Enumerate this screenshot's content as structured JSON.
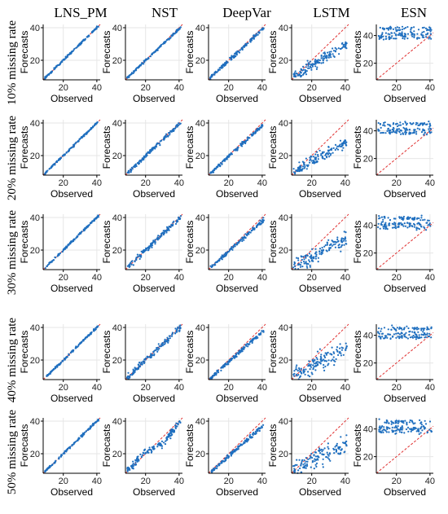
{
  "figure": {
    "columns": [
      "LNS_PM",
      "NST",
      "DeepVar",
      "LSTM",
      "ESN"
    ],
    "rows": [
      "10% missing rate",
      "20% missing rate",
      "30% missing rate",
      "40% missing rate",
      "50% missing rate"
    ]
  },
  "colors": {
    "points": "#1f6fbf",
    "reference_line": "#e03131",
    "grid": "#e6e6e6",
    "axis": "#000000"
  },
  "chart_data": {
    "type": "scatter",
    "layout": "5x5 grid of subplots (rows: missing rate, columns: model)",
    "xlabel": "Observed",
    "ylabel": "Forecasts",
    "grid": true,
    "reference_line": "y = x (red dashed, visible in LSTM and ESN panels)",
    "panels": {
      "LNS_PM": {
        "xlim": [
          8,
          42
        ],
        "ylim": [
          8,
          42
        ],
        "xticks": [
          20,
          40
        ],
        "yticks": [
          20,
          40
        ],
        "description": "points lie tightly along y = x for all missing rates",
        "samples": [
          [
            10,
            10
          ],
          [
            15,
            15
          ],
          [
            20,
            20
          ],
          [
            25,
            25
          ],
          [
            30,
            30
          ],
          [
            35,
            35
          ],
          [
            40,
            40
          ]
        ]
      },
      "NST": {
        "xlim": [
          8,
          42
        ],
        "ylim": [
          8,
          42
        ],
        "xticks": [
          20,
          40
        ],
        "yticks": [
          20,
          40
        ],
        "description": "close to y = x at 10-40% missing rate; wider S-shaped spread at 50%",
        "samples": [
          [
            10,
            10
          ],
          [
            15,
            14
          ],
          [
            20,
            19
          ],
          [
            25,
            24
          ],
          [
            30,
            29
          ],
          [
            35,
            34
          ],
          [
            40,
            40
          ]
        ]
      },
      "DeepVar": {
        "xlim": [
          8,
          42
        ],
        "ylim": [
          8,
          42
        ],
        "xticks": [
          20,
          40
        ],
        "yticks": [
          20,
          40
        ],
        "description": "close to y = x, slight under-forecast at high values",
        "samples": [
          [
            10,
            10
          ],
          [
            15,
            15
          ],
          [
            20,
            20
          ],
          [
            25,
            24
          ],
          [
            30,
            29
          ],
          [
            35,
            33
          ],
          [
            40,
            38
          ]
        ]
      },
      "LSTM": {
        "xlim": [
          8,
          42
        ],
        "ylim": [
          8,
          42
        ],
        "xticks": [
          20,
          40
        ],
        "yticks": [
          20,
          40
        ],
        "description": "wide dispersed cloud, under-forecasting at high observed values",
        "samples": [
          [
            10,
            12
          ],
          [
            15,
            15
          ],
          [
            20,
            19
          ],
          [
            25,
            22
          ],
          [
            30,
            25
          ],
          [
            35,
            28
          ],
          [
            40,
            30
          ]
        ]
      },
      "ESN": {
        "xlim": [
          8,
          42
        ],
        "ylim": [
          8,
          48
        ],
        "xticks": [
          20,
          40
        ],
        "yticks": [
          20,
          40
        ],
        "description": "flat bands of forecasts around 35-45 regardless of observed value",
        "samples": [
          [
            10,
            45
          ],
          [
            15,
            41
          ],
          [
            20,
            38
          ],
          [
            25,
            44
          ],
          [
            30,
            40
          ],
          [
            35,
            37
          ],
          [
            40,
            43
          ]
        ]
      }
    }
  }
}
